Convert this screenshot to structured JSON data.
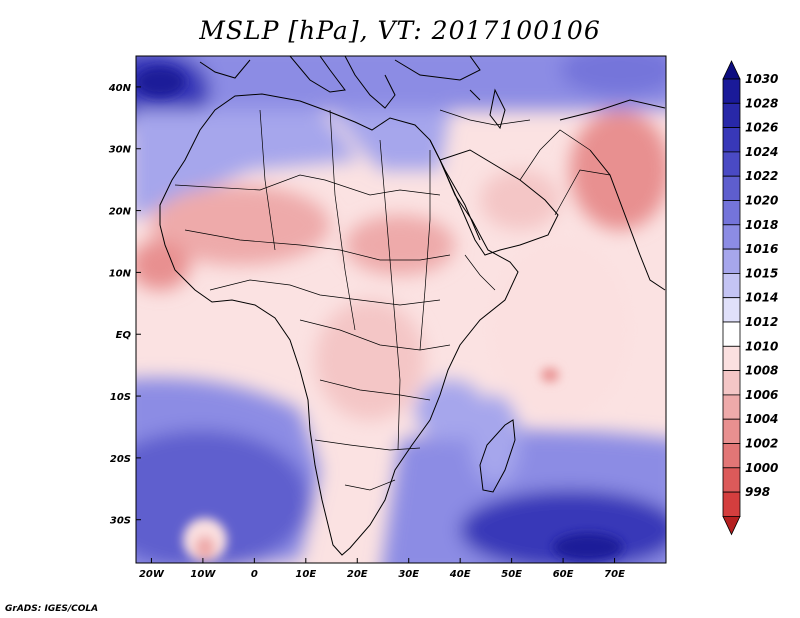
{
  "title": "MSLP [hPa], VT: 2017100106",
  "credit": "GrADS: IGES/COLA",
  "map": {
    "lon_range": [
      -23,
      80
    ],
    "lat_range": [
      -37,
      45
    ],
    "lon_ticks": [
      {
        "value": -20,
        "label": "20W"
      },
      {
        "value": -10,
        "label": "10W"
      },
      {
        "value": 0,
        "label": "0"
      },
      {
        "value": 10,
        "label": "10E"
      },
      {
        "value": 20,
        "label": "20E"
      },
      {
        "value": 30,
        "label": "30E"
      },
      {
        "value": 40,
        "label": "40E"
      },
      {
        "value": 50,
        "label": "50E"
      },
      {
        "value": 60,
        "label": "60E"
      },
      {
        "value": 70,
        "label": "70E"
      }
    ],
    "lat_ticks": [
      {
        "value": 40,
        "label": "40N"
      },
      {
        "value": 30,
        "label": "30N"
      },
      {
        "value": 20,
        "label": "20N"
      },
      {
        "value": 10,
        "label": "10N"
      },
      {
        "value": 0,
        "label": "EQ"
      },
      {
        "value": -10,
        "label": "10S"
      },
      {
        "value": -20,
        "label": "20S"
      },
      {
        "value": -30,
        "label": "30S"
      }
    ]
  },
  "colorbar": {
    "levels": [
      {
        "label": "1030",
        "color": "#1a1a99"
      },
      {
        "label": "1028",
        "color": "#2828a8"
      },
      {
        "label": "1026",
        "color": "#3838b8"
      },
      {
        "label": "1024",
        "color": "#4a4ac4"
      },
      {
        "label": "1022",
        "color": "#5e5ece"
      },
      {
        "label": "1020",
        "color": "#7474da"
      },
      {
        "label": "1018",
        "color": "#8c8ce4"
      },
      {
        "label": "1016",
        "color": "#a6a6ec"
      },
      {
        "label": "1015",
        "color": "#c4c4f4"
      },
      {
        "label": "1014",
        "color": "#e0e0fa"
      },
      {
        "label": "1012",
        "color": "#ffffff"
      },
      {
        "label": "1010",
        "color": "#fbe0e0"
      },
      {
        "label": "1008",
        "color": "#f4c6c6"
      },
      {
        "label": "1006",
        "color": "#eeaaaa"
      },
      {
        "label": "1004",
        "color": "#e89090"
      },
      {
        "label": "1002",
        "color": "#e27676"
      },
      {
        "label": "1000",
        "color": "#dc5a5a"
      },
      {
        "label": "998",
        "color": "#d43e3e"
      }
    ],
    "extend_high_color": "#0d0d80",
    "extend_low_color": "#b52020"
  }
}
